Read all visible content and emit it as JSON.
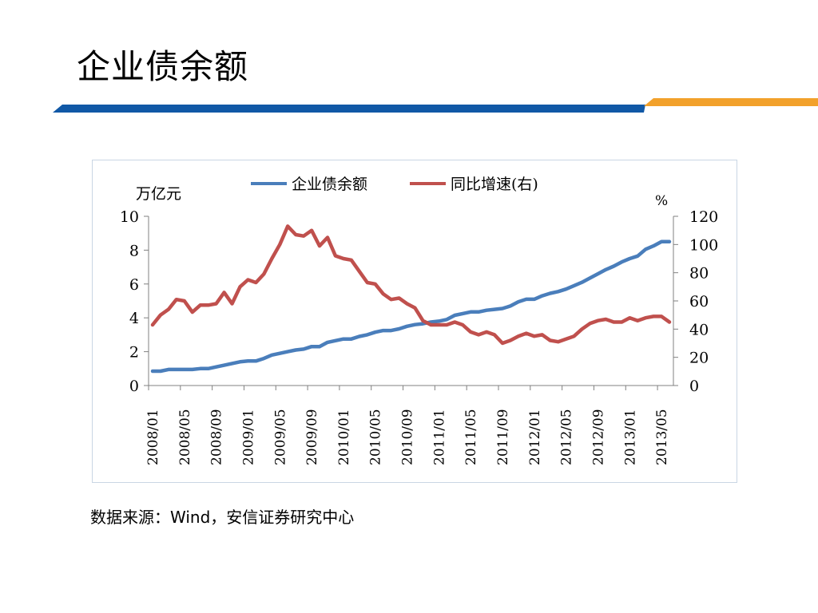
{
  "slide": {
    "title": "企业债余额",
    "source_note": "数据来源：Wind，安信证券研究中心",
    "accent_colors": {
      "blue_bar": "#1058a6",
      "orange_bar": "#f2a12b"
    }
  },
  "chart_data": {
    "type": "line",
    "title": "",
    "legend_position": "top",
    "grid": false,
    "x_tick_labels": [
      "2008/01",
      "2008/05",
      "2008/09",
      "2009/01",
      "2009/05",
      "2009/09",
      "2010/01",
      "2010/05",
      "2010/09",
      "2011/01",
      "2011/05",
      "2011/09",
      "2012/01",
      "2012/05",
      "2012/09",
      "2013/01",
      "2013/05"
    ],
    "y_left": {
      "label": "万亿元",
      "min": 0,
      "max": 10,
      "ticks": [
        0,
        2,
        4,
        6,
        8,
        10
      ]
    },
    "y_right": {
      "label": "%",
      "min": 0,
      "max": 120,
      "ticks": [
        0,
        20,
        40,
        60,
        80,
        100,
        120
      ]
    },
    "x": [
      "2008/01",
      "2008/02",
      "2008/03",
      "2008/04",
      "2008/05",
      "2008/06",
      "2008/07",
      "2008/08",
      "2008/09",
      "2008/10",
      "2008/11",
      "2008/12",
      "2009/01",
      "2009/02",
      "2009/03",
      "2009/04",
      "2009/05",
      "2009/06",
      "2009/07",
      "2009/08",
      "2009/09",
      "2009/10",
      "2009/11",
      "2009/12",
      "2010/01",
      "2010/02",
      "2010/03",
      "2010/04",
      "2010/05",
      "2010/06",
      "2010/07",
      "2010/08",
      "2010/09",
      "2010/10",
      "2010/11",
      "2010/12",
      "2011/01",
      "2011/02",
      "2011/03",
      "2011/04",
      "2011/05",
      "2011/06",
      "2011/07",
      "2011/08",
      "2011/09",
      "2011/10",
      "2011/11",
      "2011/12",
      "2012/01",
      "2012/02",
      "2012/03",
      "2012/04",
      "2012/05",
      "2012/06",
      "2012/07",
      "2012/08",
      "2012/09",
      "2012/10",
      "2012/11",
      "2012/12",
      "2013/01",
      "2013/02",
      "2013/03",
      "2013/04",
      "2013/05",
      "2013/06"
    ],
    "series": [
      {
        "name": "企业债余额",
        "axis": "left",
        "color": "#4a7ebb",
        "values": [
          0.85,
          0.85,
          0.95,
          0.95,
          0.95,
          0.95,
          1.0,
          1.0,
          1.1,
          1.2,
          1.3,
          1.4,
          1.45,
          1.45,
          1.6,
          1.8,
          1.9,
          2.0,
          2.1,
          2.15,
          2.3,
          2.3,
          2.55,
          2.65,
          2.75,
          2.75,
          2.9,
          3.0,
          3.15,
          3.25,
          3.25,
          3.35,
          3.5,
          3.6,
          3.65,
          3.75,
          3.8,
          3.9,
          4.15,
          4.25,
          4.35,
          4.35,
          4.45,
          4.5,
          4.55,
          4.7,
          4.95,
          5.1,
          5.1,
          5.3,
          5.45,
          5.55,
          5.7,
          5.9,
          6.1,
          6.35,
          6.6,
          6.85,
          7.05,
          7.3,
          7.5,
          7.65,
          8.05,
          8.25,
          8.5,
          8.5
        ]
      },
      {
        "name": "同比增速(右)",
        "axis": "right",
        "color": "#c0504d",
        "values": [
          43,
          50,
          54,
          61,
          60,
          52,
          57,
          57,
          58,
          66,
          58,
          70,
          75,
          73,
          79,
          90,
          100,
          113,
          107,
          106,
          110,
          99,
          105,
          92,
          90,
          89,
          81,
          73,
          72,
          65,
          61,
          62,
          58,
          55,
          46,
          43,
          43,
          43,
          45,
          43,
          38,
          36,
          38,
          36,
          30,
          32,
          35,
          37,
          35,
          36,
          32,
          31,
          33,
          35,
          40,
          44,
          46,
          47,
          45,
          45,
          48,
          46,
          48,
          49,
          49,
          45
        ]
      }
    ]
  }
}
